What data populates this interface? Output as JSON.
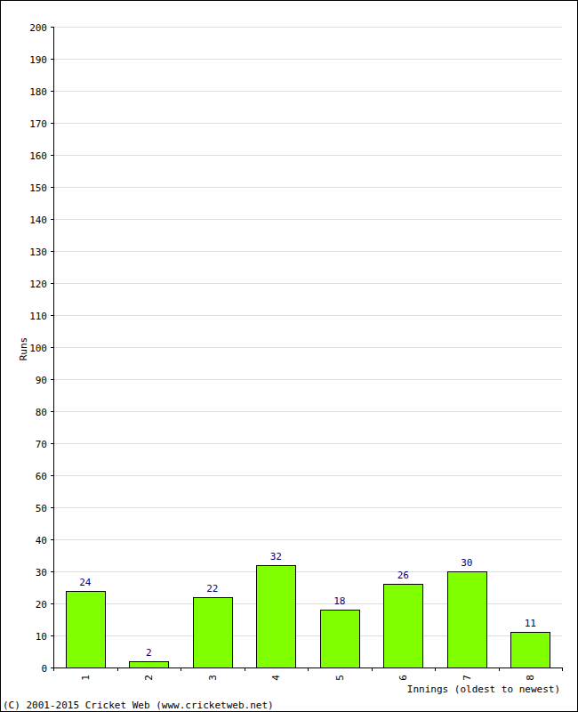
{
  "chart_data": {
    "type": "bar",
    "categories": [
      "1",
      "2",
      "3",
      "4",
      "5",
      "6",
      "7",
      "8"
    ],
    "values": [
      24,
      2,
      22,
      32,
      18,
      26,
      30,
      11
    ],
    "color": "#80ff00",
    "ylim": [
      0,
      200
    ],
    "yticks": [
      0,
      10,
      20,
      30,
      40,
      50,
      60,
      70,
      80,
      90,
      100,
      110,
      120,
      130,
      140,
      150,
      160,
      170,
      180,
      190,
      200
    ],
    "grid": true,
    "data_labels": true,
    "y_label": "Runs",
    "x_label": "Innings (oldest to newest)",
    "annotations": [
      "(C) 2001-2015 Cricket Web (www.cricketweb.net)"
    ]
  }
}
